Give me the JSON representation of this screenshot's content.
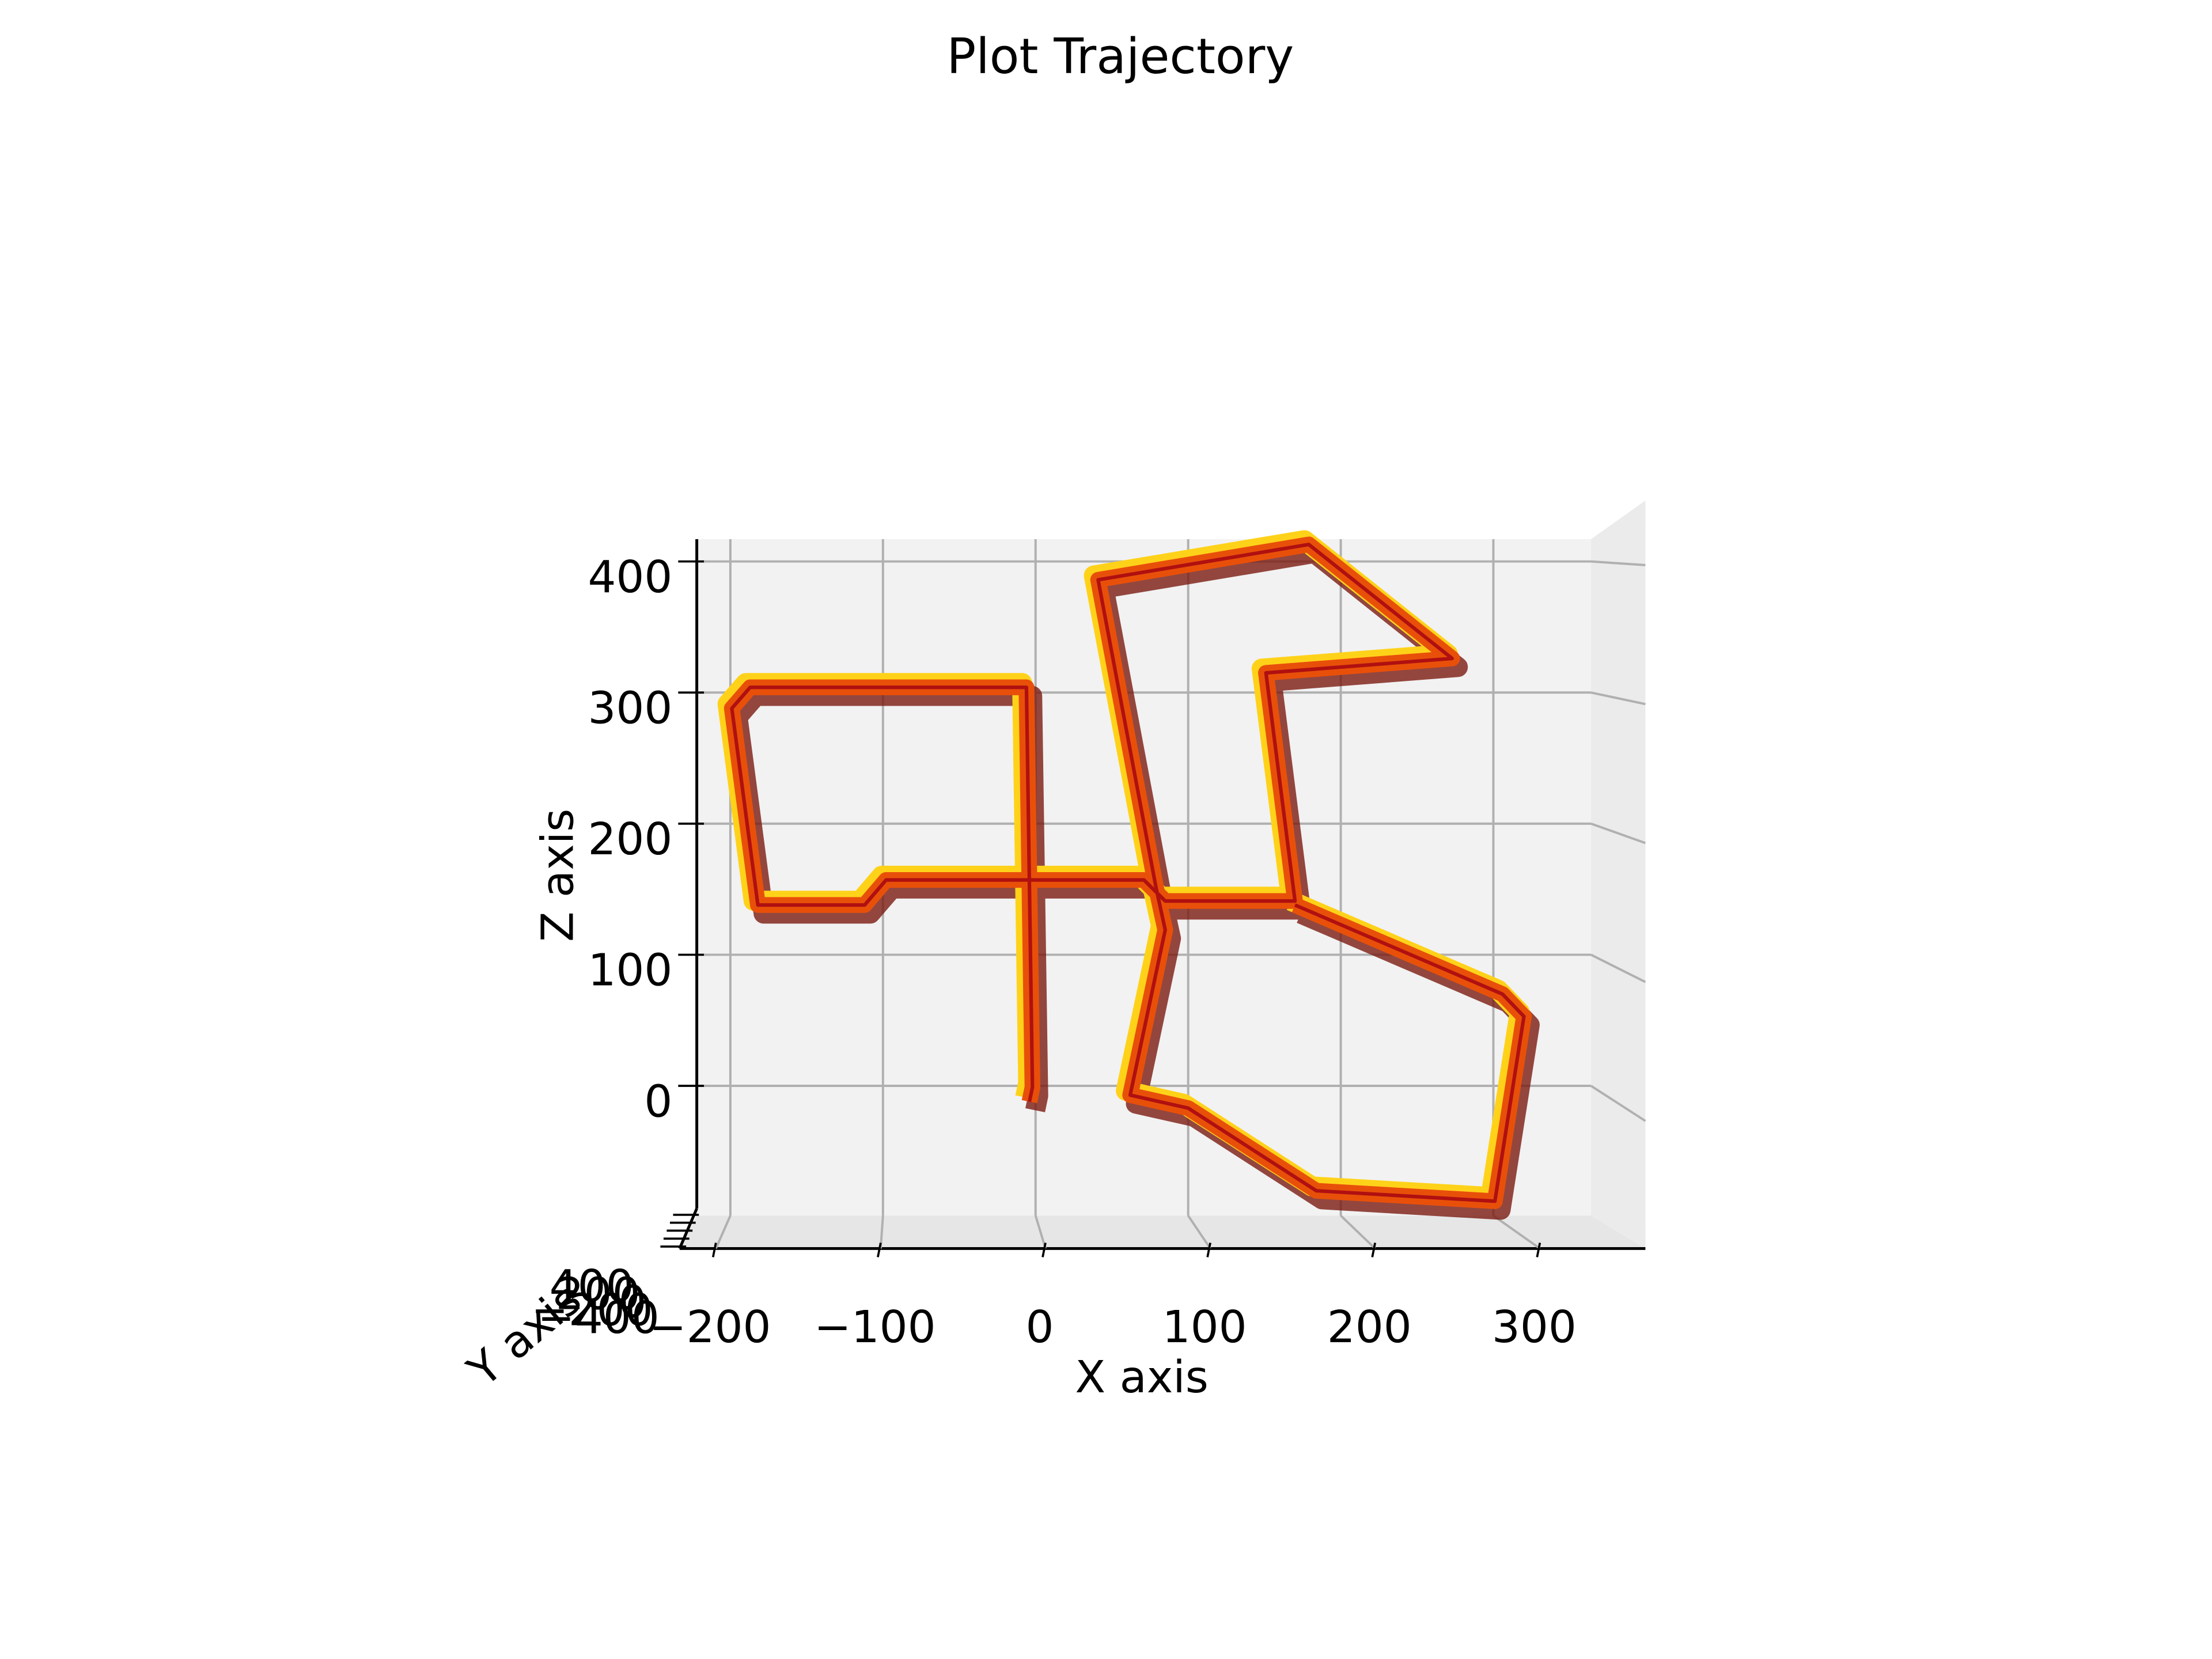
{
  "chart_data": {
    "type": "line3d",
    "title": "Plot Trajectory",
    "x_label": "X axis",
    "y_label": "Y axis",
    "z_label": "Z axis",
    "color": "#e8500a",
    "x": [
      -4,
      -2,
      -6,
      -187,
      -199,
      -182,
      -112,
      -98,
      71,
      85,
      170,
      151,
      273,
      179,
      41,
      79,
      85,
      62,
      100,
      184,
      301,
      320,
      306,
      170
    ],
    "values": [
      -12,
      -1,
      304,
      304,
      288,
      138,
      138,
      157,
      157,
      141,
      141,
      315,
      326,
      413,
      386,
      151,
      119,
      -7,
      -17,
      -80,
      -88,
      53,
      70,
      138
    ],
    "xlim": [
      -222,
      364
    ],
    "xticks": [
      {
        "value": -200,
        "label": "−200"
      },
      {
        "value": -100,
        "label": "−100"
      },
      0,
      100,
      200,
      300
    ],
    "ylim": [
      -450,
      450
    ],
    "yticks": [
      {
        "value": -400,
        "label": "−400"
      },
      {
        "value": -200,
        "label": "−200"
      },
      0,
      200,
      400
    ],
    "zlim": [
      -99,
      417
    ],
    "zticks": [
      0,
      100,
      200,
      300,
      400
    ],
    "grid": true
  }
}
